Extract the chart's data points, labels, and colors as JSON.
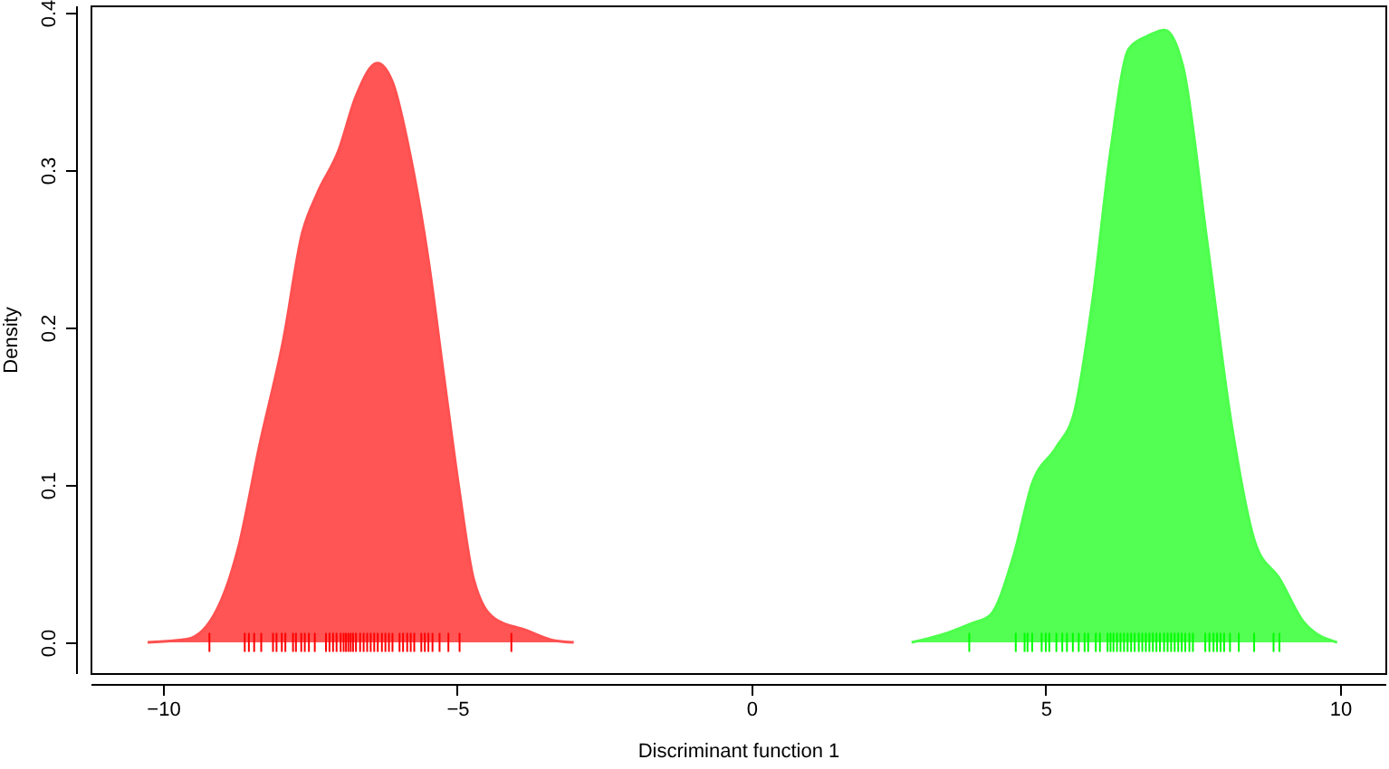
{
  "chart_data": {
    "type": "area",
    "xlabel": "Discriminant function 1",
    "ylabel": "Density",
    "xlim": [
      -11.23,
      10.77
    ],
    "ylim": [
      -0.0195,
      0.4046
    ],
    "xticks": [
      -10,
      -5,
      0,
      5,
      10
    ],
    "yticks": [
      {
        "value": 0,
        "label": "0.0"
      },
      {
        "value": 0.1,
        "label": "0.1"
      },
      {
        "value": 0.2,
        "label": "0.2"
      },
      {
        "value": 0.3,
        "label": "0.3"
      },
      {
        "value": 0.4,
        "label": "0.4"
      }
    ],
    "grid": false,
    "series": [
      {
        "color": "#ff5050",
        "x": [
          -10.26,
          -9.59,
          -9.08,
          -8.72,
          -8.36,
          -7.95,
          -7.64,
          -7.38,
          -7.02,
          -6.72,
          -6.36,
          -6.1,
          -5.79,
          -5.49,
          -5.23,
          -4.97,
          -4.72,
          -4.36,
          -3.85,
          -3.33,
          -3.02
        ],
        "values": [
          0,
          0.002,
          0.021,
          0.06,
          0.125,
          0.193,
          0.259,
          0.285,
          0.312,
          0.347,
          0.368,
          0.356,
          0.308,
          0.243,
          0.17,
          0.098,
          0.04,
          0.015,
          0.008,
          0.001,
          0
        ]
      },
      {
        "color": "#4cff4c",
        "x": [
          2.72,
          3.33,
          3.74,
          4.05,
          4.46,
          4.77,
          5.18,
          5.49,
          5.79,
          6.1,
          6.41,
          6.72,
          7.02,
          7.33,
          7.74,
          8.15,
          8.56,
          8.98,
          9.38,
          9.95
        ],
        "values": [
          0,
          0.006,
          0.012,
          0.017,
          0.056,
          0.101,
          0.124,
          0.147,
          0.216,
          0.312,
          0.377,
          0.385,
          0.389,
          0.366,
          0.255,
          0.14,
          0.063,
          0.04,
          0.013,
          0
        ]
      },
      {
        "type": "bar",
        "color": "#ff0000",
        "x": [
          -9.21,
          -8.61,
          -8.54,
          -8.45,
          -8.33,
          -8.13,
          -8.07,
          -7.98,
          -7.92,
          -7.79,
          -7.74,
          -7.65,
          -7.59,
          -7.52,
          -7.42,
          -7.23,
          -7.17,
          -7.11,
          -7.05,
          -6.98,
          -6.93,
          -6.89,
          -6.85,
          -6.81,
          -6.77,
          -6.72,
          -6.65,
          -6.59,
          -6.53,
          -6.47,
          -6.41,
          -6.35,
          -6.28,
          -6.22,
          -6.16,
          -6.1,
          -5.98,
          -5.92,
          -5.85,
          -5.79,
          -5.73,
          -5.61,
          -5.55,
          -5.49,
          -5.42,
          -5.3,
          -5.15,
          -4.96,
          -4.08
        ],
        "base": [
          -0.006,
          -0.006,
          -0.006,
          -0.006,
          -0.006,
          -0.006,
          -0.006,
          -0.006,
          -0.006,
          -0.006,
          -0.006,
          -0.006,
          -0.006,
          -0.006,
          -0.006,
          -0.006,
          -0.006,
          -0.006,
          -0.006,
          -0.006,
          -0.006,
          -0.006,
          -0.006,
          -0.006,
          -0.006,
          -0.006,
          -0.006,
          -0.006,
          -0.006,
          -0.006,
          -0.006,
          -0.006,
          -0.006,
          -0.006,
          -0.006,
          -0.006,
          -0.006,
          -0.006,
          -0.006,
          -0.006,
          -0.006,
          -0.006,
          -0.006,
          -0.006,
          -0.006,
          -0.006,
          -0.006,
          -0.006,
          -0.006
        ],
        "values": [
          0.012,
          0.012,
          0.012,
          0.012,
          0.012,
          0.012,
          0.012,
          0.012,
          0.012,
          0.012,
          0.012,
          0.012,
          0.012,
          0.012,
          0.012,
          0.012,
          0.012,
          0.012,
          0.012,
          0.012,
          0.012,
          0.012,
          0.012,
          0.012,
          0.012,
          0.012,
          0.012,
          0.012,
          0.012,
          0.012,
          0.012,
          0.012,
          0.012,
          0.012,
          0.012,
          0.012,
          0.012,
          0.012,
          0.012,
          0.012,
          0.012,
          0.012,
          0.012,
          0.012,
          0.012,
          0.012,
          0.012,
          0.012,
          0.012
        ]
      },
      {
        "type": "bar",
        "color": "#00ff00",
        "x": [
          3.7,
          4.49,
          4.64,
          4.69,
          4.77,
          4.93,
          5.0,
          5.06,
          5.18,
          5.28,
          5.36,
          5.46,
          5.56,
          5.66,
          5.72,
          5.85,
          5.92,
          6.05,
          6.1,
          6.15,
          6.21,
          6.27,
          6.33,
          6.39,
          6.45,
          6.51,
          6.58,
          6.64,
          6.7,
          6.76,
          6.82,
          6.88,
          6.94,
          7.01,
          7.07,
          7.13,
          7.19,
          7.25,
          7.31,
          7.37,
          7.44,
          7.5,
          7.71,
          7.78,
          7.85,
          7.91,
          7.97,
          8.03,
          8.13,
          8.28,
          8.54,
          8.87,
          8.97
        ],
        "base": [
          -0.006,
          -0.006,
          -0.006,
          -0.006,
          -0.006,
          -0.006,
          -0.006,
          -0.006,
          -0.006,
          -0.006,
          -0.006,
          -0.006,
          -0.006,
          -0.006,
          -0.006,
          -0.006,
          -0.006,
          -0.006,
          -0.006,
          -0.006,
          -0.006,
          -0.006,
          -0.006,
          -0.006,
          -0.006,
          -0.006,
          -0.006,
          -0.006,
          -0.006,
          -0.006,
          -0.006,
          -0.006,
          -0.006,
          -0.006,
          -0.006,
          -0.006,
          -0.006,
          -0.006,
          -0.006,
          -0.006,
          -0.006,
          -0.006,
          -0.006,
          -0.006,
          -0.006,
          -0.006,
          -0.006,
          -0.006,
          -0.006,
          -0.006,
          -0.006,
          -0.006,
          -0.006
        ],
        "values": [
          0.012,
          0.012,
          0.012,
          0.012,
          0.012,
          0.012,
          0.012,
          0.012,
          0.012,
          0.012,
          0.012,
          0.012,
          0.012,
          0.012,
          0.012,
          0.012,
          0.012,
          0.012,
          0.012,
          0.012,
          0.012,
          0.012,
          0.012,
          0.012,
          0.012,
          0.012,
          0.012,
          0.012,
          0.012,
          0.012,
          0.012,
          0.012,
          0.012,
          0.012,
          0.012,
          0.012,
          0.012,
          0.012,
          0.012,
          0.012,
          0.012,
          0.012,
          0.012,
          0.012,
          0.012,
          0.012,
          0.012,
          0.012,
          0.012,
          0.012,
          0.012,
          0.012,
          0.012
        ]
      }
    ]
  }
}
